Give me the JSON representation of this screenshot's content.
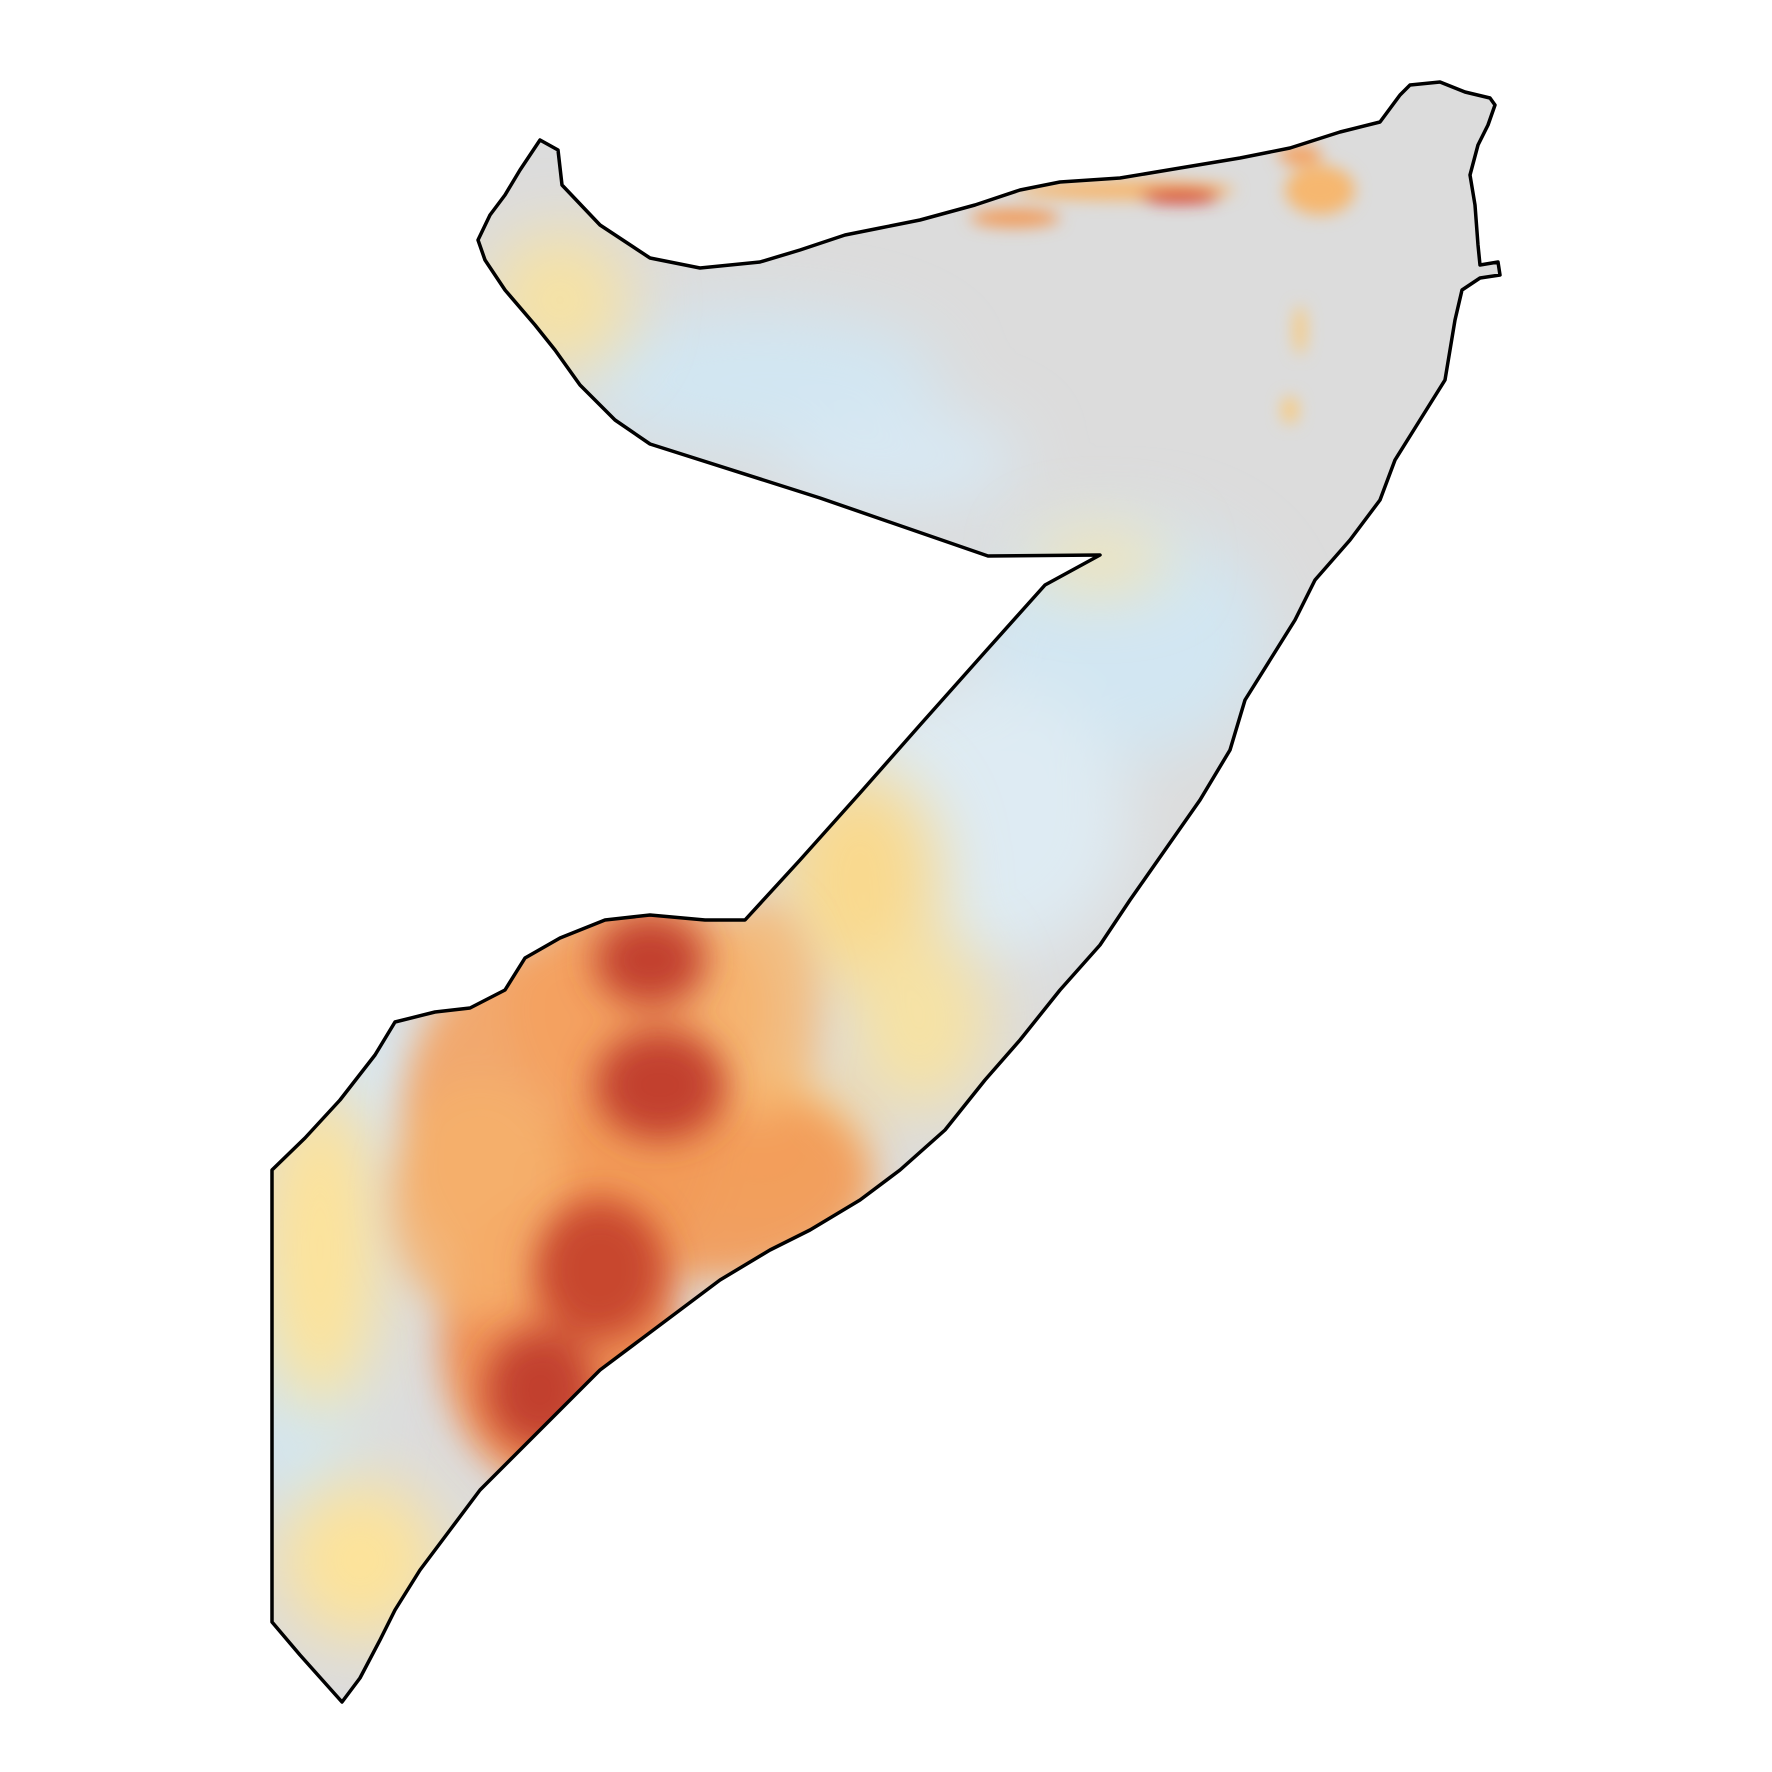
{
  "map": {
    "type": "choropleth-raster",
    "region_outline": "Somalia",
    "colors": {
      "background": "#ffffff",
      "outline": "#000000",
      "neutral": "#dcdcdc",
      "scale": [
        "#c6dbef",
        "#deebf7",
        "#fee391",
        "#fdae61",
        "#f46d43",
        "#d73027",
        "#b2182b"
      ]
    },
    "high_value_clusters": [
      {
        "name": "south-central-high-1",
        "level": "very-high"
      },
      {
        "name": "south-central-high-2",
        "level": "very-high"
      },
      {
        "name": "south-central-high-3",
        "level": "very-high"
      },
      {
        "name": "south-central-high-4",
        "level": "very-high"
      },
      {
        "name": "north-coast-hotspot",
        "level": "high"
      }
    ]
  }
}
